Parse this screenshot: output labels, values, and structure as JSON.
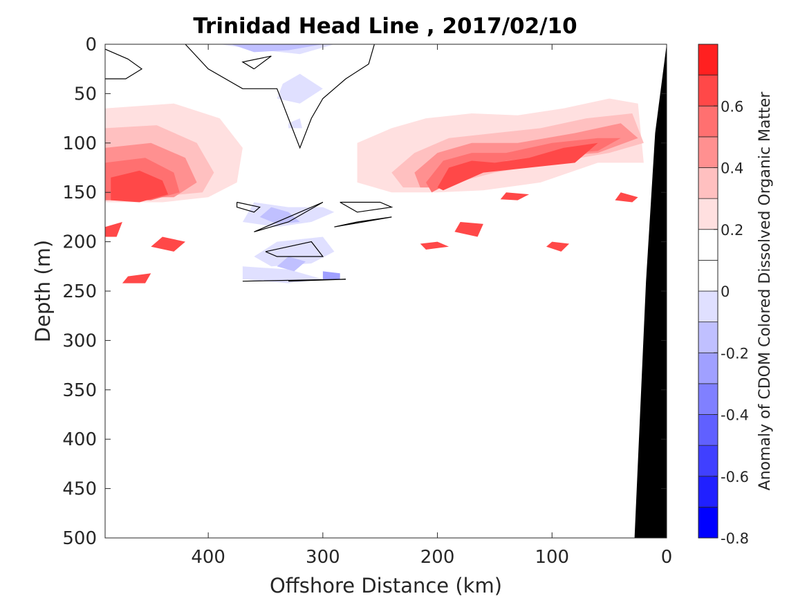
{
  "chart_data": {
    "type": "heatmap",
    "title": "Trinidad Head Line , 2017/02/10",
    "xlabel": "Offshore Distance (km)",
    "ylabel": "Depth (m)",
    "xlim": [
      490,
      0
    ],
    "ylim": [
      0,
      500
    ],
    "x_ticks": [
      400,
      300,
      200,
      100,
      0
    ],
    "y_ticks": [
      0,
      50,
      100,
      150,
      200,
      250,
      300,
      350,
      400,
      450,
      500
    ],
    "grid": false,
    "colorbar": {
      "label": "Anomaly of CDOM Colored Dissolved Organic Matter",
      "range": [
        -0.8,
        0.8
      ],
      "levels": [
        -0.8,
        -0.7,
        -0.6,
        -0.5,
        -0.4,
        -0.3,
        -0.2,
        -0.1,
        0,
        0.1,
        0.2,
        0.3,
        0.4,
        0.5,
        0.6,
        0.7,
        0.8
      ],
      "colors": [
        "#0000ff",
        "#2020ff",
        "#4040ff",
        "#6060ff",
        "#8080ff",
        "#a0a0ff",
        "#c0c0ff",
        "#e0e0ff",
        "#ffffff",
        "#ffffff",
        "#ffe0e0",
        "#ffc0c0",
        "#ff9090",
        "#ff7070",
        "#ff4848",
        "#ff2020",
        "#ff0000"
      ],
      "ticks": [
        "0.6",
        "0.4",
        "0.2",
        "0",
        "-0.2",
        "-0.4",
        "-0.6",
        "-0.8"
      ],
      "tick_values": [
        0.6,
        0.4,
        0.2,
        0,
        -0.2,
        -0.4,
        -0.6,
        -0.8
      ]
    },
    "bathymetry": [
      [
        28,
        500
      ],
      [
        18,
        240
      ],
      [
        10,
        90
      ],
      [
        0,
        0
      ],
      [
        0,
        500
      ]
    ],
    "contour_zero": [
      [
        [
          490,
          5
        ],
        [
          470,
          15
        ],
        [
          458,
          25
        ],
        [
          472,
          35
        ],
        [
          490,
          35
        ]
      ],
      [
        [
          420,
          0
        ],
        [
          400,
          25
        ],
        [
          370,
          45
        ],
        [
          340,
          45
        ],
        [
          330,
          75
        ],
        [
          320,
          105
        ],
        [
          310,
          75
        ],
        [
          300,
          55
        ],
        [
          280,
          35
        ],
        [
          260,
          20
        ],
        [
          255,
          0
        ]
      ],
      [
        [
          360,
          25
        ],
        [
          345,
          12
        ],
        [
          370,
          18
        ],
        [
          360,
          25
        ]
      ],
      [
        [
          375,
          160
        ],
        [
          355,
          165
        ],
        [
          360,
          170
        ],
        [
          375,
          165
        ],
        [
          375,
          160
        ]
      ],
      [
        [
          285,
          160
        ],
        [
          250,
          160
        ],
        [
          240,
          165
        ],
        [
          270,
          170
        ],
        [
          285,
          160
        ]
      ],
      [
        [
          360,
          190
        ],
        [
          330,
          180
        ],
        [
          300,
          160
        ],
        [
          330,
          175
        ],
        [
          360,
          190
        ]
      ],
      [
        [
          350,
          210
        ],
        [
          310,
          200
        ],
        [
          300,
          215
        ],
        [
          340,
          215
        ],
        [
          350,
          210
        ]
      ],
      [
        [
          290,
          185
        ],
        [
          240,
          175
        ],
        [
          270,
          180
        ],
        [
          290,
          185
        ]
      ],
      [
        [
          330,
          240
        ],
        [
          280,
          238
        ],
        [
          370,
          240
        ]
      ]
    ],
    "anomaly_regions": [
      {
        "value": 0.1,
        "points": [
          [
            490,
            45
          ],
          [
            440,
            45
          ],
          [
            380,
            50
          ],
          [
            340,
            70
          ],
          [
            330,
            100
          ],
          [
            310,
            110
          ],
          [
            300,
            80
          ],
          [
            270,
            60
          ],
          [
            230,
            60
          ],
          [
            200,
            50
          ],
          [
            150,
            55
          ],
          [
            120,
            45
          ],
          [
            100,
            45
          ],
          [
            40,
            45
          ],
          [
            20,
            50
          ],
          [
            20,
            150
          ],
          [
            120,
            150
          ],
          [
            160,
            145
          ],
          [
            180,
            165
          ],
          [
            200,
            160
          ],
          [
            240,
            155
          ],
          [
            270,
            155
          ],
          [
            300,
            160
          ],
          [
            330,
            175
          ],
          [
            370,
            155
          ],
          [
            420,
            170
          ],
          [
            470,
            170
          ],
          [
            490,
            185
          ]
        ]
      },
      {
        "value": 0.1,
        "points": [
          [
            110,
            0
          ],
          [
            30,
            0
          ],
          [
            30,
            40
          ],
          [
            60,
            40
          ],
          [
            110,
            40
          ]
        ]
      },
      {
        "value": 0.1,
        "points": [
          [
            490,
            190
          ],
          [
            420,
            190
          ],
          [
            380,
            210
          ],
          [
            340,
            200
          ],
          [
            300,
            220
          ],
          [
            330,
            230
          ],
          [
            370,
            240
          ],
          [
            420,
            242
          ],
          [
            450,
            240
          ],
          [
            470,
            230
          ]
        ]
      },
      {
        "value": 0.1,
        "points": [
          [
            240,
            180
          ],
          [
            210,
            175
          ],
          [
            160,
            175
          ],
          [
            150,
            190
          ],
          [
            180,
            205
          ],
          [
            210,
            200
          ],
          [
            250,
            195
          ]
        ]
      },
      {
        "value": 0.2,
        "points": [
          [
            490,
            65
          ],
          [
            430,
            60
          ],
          [
            390,
            75
          ],
          [
            370,
            105
          ],
          [
            375,
            140
          ],
          [
            400,
            155
          ],
          [
            440,
            160
          ],
          [
            490,
            160
          ]
        ]
      },
      {
        "value": 0.2,
        "points": [
          [
            270,
            100
          ],
          [
            240,
            85
          ],
          [
            210,
            75
          ],
          [
            170,
            70
          ],
          [
            130,
            72
          ],
          [
            90,
            65
          ],
          [
            50,
            55
          ],
          [
            25,
            60
          ],
          [
            20,
            120
          ],
          [
            60,
            120
          ],
          [
            110,
            140
          ],
          [
            160,
            148
          ],
          [
            200,
            150
          ],
          [
            240,
            150
          ],
          [
            270,
            140
          ]
        ]
      },
      {
        "value": 0.3,
        "points": [
          [
            490,
            85
          ],
          [
            445,
            82
          ],
          [
            410,
            100
          ],
          [
            395,
            130
          ],
          [
            405,
            150
          ],
          [
            450,
            155
          ],
          [
            490,
            155
          ]
        ]
      },
      {
        "value": 0.3,
        "points": [
          [
            240,
            130
          ],
          [
            220,
            110
          ],
          [
            190,
            95
          ],
          [
            150,
            90
          ],
          [
            110,
            85
          ],
          [
            70,
            75
          ],
          [
            30,
            70
          ],
          [
            20,
            100
          ],
          [
            50,
            110
          ],
          [
            100,
            120
          ],
          [
            150,
            130
          ],
          [
            200,
            145
          ],
          [
            230,
            145
          ]
        ]
      },
      {
        "value": 0.4,
        "points": [
          [
            490,
            105
          ],
          [
            450,
            100
          ],
          [
            420,
            115
          ],
          [
            410,
            140
          ],
          [
            430,
            155
          ],
          [
            490,
            155
          ]
        ]
      },
      {
        "value": 0.4,
        "points": [
          [
            220,
            130
          ],
          [
            200,
            110
          ],
          [
            170,
            100
          ],
          [
            130,
            100
          ],
          [
            80,
            90
          ],
          [
            40,
            80
          ],
          [
            25,
            95
          ],
          [
            60,
            110
          ],
          [
            110,
            115
          ],
          [
            160,
            130
          ],
          [
            200,
            145
          ],
          [
            215,
            145
          ]
        ]
      },
      {
        "value": 0.5,
        "points": [
          [
            490,
            120
          ],
          [
            455,
            115
          ],
          [
            430,
            130
          ],
          [
            425,
            150
          ],
          [
            450,
            158
          ],
          [
            490,
            158
          ]
        ]
      },
      {
        "value": 0.5,
        "points": [
          [
            210,
            140
          ],
          [
            195,
            118
          ],
          [
            170,
            110
          ],
          [
            140,
            110
          ],
          [
            100,
            100
          ],
          [
            60,
            95
          ],
          [
            40,
            95
          ],
          [
            60,
            108
          ],
          [
            100,
            112
          ],
          [
            140,
            118
          ],
          [
            180,
            135
          ],
          [
            205,
            150
          ]
        ]
      },
      {
        "value": 0.6,
        "points": [
          [
            485,
            135
          ],
          [
            460,
            128
          ],
          [
            440,
            138
          ],
          [
            435,
            152
          ],
          [
            460,
            160
          ],
          [
            485,
            158
          ]
        ]
      },
      {
        "value": 0.6,
        "points": [
          [
            200,
            145
          ],
          [
            190,
            125
          ],
          [
            170,
            118
          ],
          [
            150,
            120
          ],
          [
            120,
            115
          ],
          [
            90,
            105
          ],
          [
            60,
            100
          ],
          [
            80,
            120
          ],
          [
            120,
            125
          ],
          [
            160,
            130
          ],
          [
            195,
            148
          ]
        ]
      },
      {
        "value": 0.6,
        "points": [
          [
            490,
            185
          ],
          [
            475,
            180
          ],
          [
            480,
            195
          ],
          [
            490,
            195
          ]
        ]
      },
      {
        "value": 0.6,
        "points": [
          [
            440,
            195
          ],
          [
            420,
            200
          ],
          [
            430,
            210
          ],
          [
            450,
            205
          ]
        ]
      },
      {
        "value": 0.6,
        "points": [
          [
            200,
            200
          ],
          [
            190,
            205
          ],
          [
            210,
            208
          ],
          [
            215,
            202
          ]
        ]
      },
      {
        "value": 0.6,
        "points": [
          [
            100,
            200
          ],
          [
            85,
            202
          ],
          [
            92,
            210
          ],
          [
            105,
            205
          ]
        ]
      },
      {
        "value": 0.6,
        "points": [
          [
            140,
            150
          ],
          [
            120,
            152
          ],
          [
            130,
            158
          ],
          [
            145,
            157
          ]
        ]
      },
      {
        "value": 0.6,
        "points": [
          [
            40,
            150
          ],
          [
            25,
            155
          ],
          [
            30,
            160
          ],
          [
            45,
            158
          ]
        ]
      },
      {
        "value": 0.6,
        "points": [
          [
            180,
            180
          ],
          [
            160,
            182
          ],
          [
            165,
            195
          ],
          [
            185,
            190
          ]
        ]
      },
      {
        "value": 0.6,
        "points": [
          [
            470,
            235
          ],
          [
            450,
            232
          ],
          [
            455,
            242
          ],
          [
            475,
            242
          ]
        ]
      },
      {
        "value": -0.1,
        "points": [
          [
            390,
            0
          ],
          [
            360,
            5
          ],
          [
            320,
            10
          ],
          [
            290,
            0
          ]
        ]
      },
      {
        "value": -0.1,
        "points": [
          [
            335,
            40
          ],
          [
            320,
            30
          ],
          [
            300,
            45
          ],
          [
            320,
            60
          ],
          [
            340,
            55
          ]
        ]
      },
      {
        "value": -0.1,
        "points": [
          [
            330,
            80
          ],
          [
            320,
            75
          ],
          [
            318,
            85
          ],
          [
            330,
            85
          ]
        ]
      },
      {
        "value": -0.1,
        "points": [
          [
            360,
            160
          ],
          [
            330,
            165
          ],
          [
            300,
            165
          ],
          [
            290,
            170
          ],
          [
            310,
            180
          ],
          [
            340,
            185
          ],
          [
            370,
            180
          ]
        ]
      },
      {
        "value": -0.1,
        "points": [
          [
            340,
            200
          ],
          [
            300,
            195
          ],
          [
            290,
            210
          ],
          [
            310,
            222
          ],
          [
            345,
            225
          ],
          [
            360,
            215
          ]
        ]
      },
      {
        "value": -0.1,
        "points": [
          [
            370,
            225
          ],
          [
            330,
            228
          ],
          [
            300,
            238
          ],
          [
            330,
            242
          ],
          [
            370,
            238
          ]
        ]
      },
      {
        "value": -0.2,
        "points": [
          [
            380,
            0
          ],
          [
            360,
            8
          ],
          [
            330,
            6
          ],
          [
            300,
            0
          ]
        ]
      },
      {
        "value": -0.2,
        "points": [
          [
            345,
            165
          ],
          [
            330,
            170
          ],
          [
            320,
            180
          ],
          [
            340,
            182
          ],
          [
            355,
            175
          ]
        ]
      },
      {
        "value": -0.2,
        "points": [
          [
            330,
            215
          ],
          [
            315,
            220
          ],
          [
            325,
            230
          ],
          [
            340,
            225
          ]
        ]
      },
      {
        "value": -0.3,
        "points": [
          [
            300,
            230
          ],
          [
            285,
            232
          ],
          [
            285,
            238
          ],
          [
            300,
            238
          ]
        ]
      }
    ]
  }
}
